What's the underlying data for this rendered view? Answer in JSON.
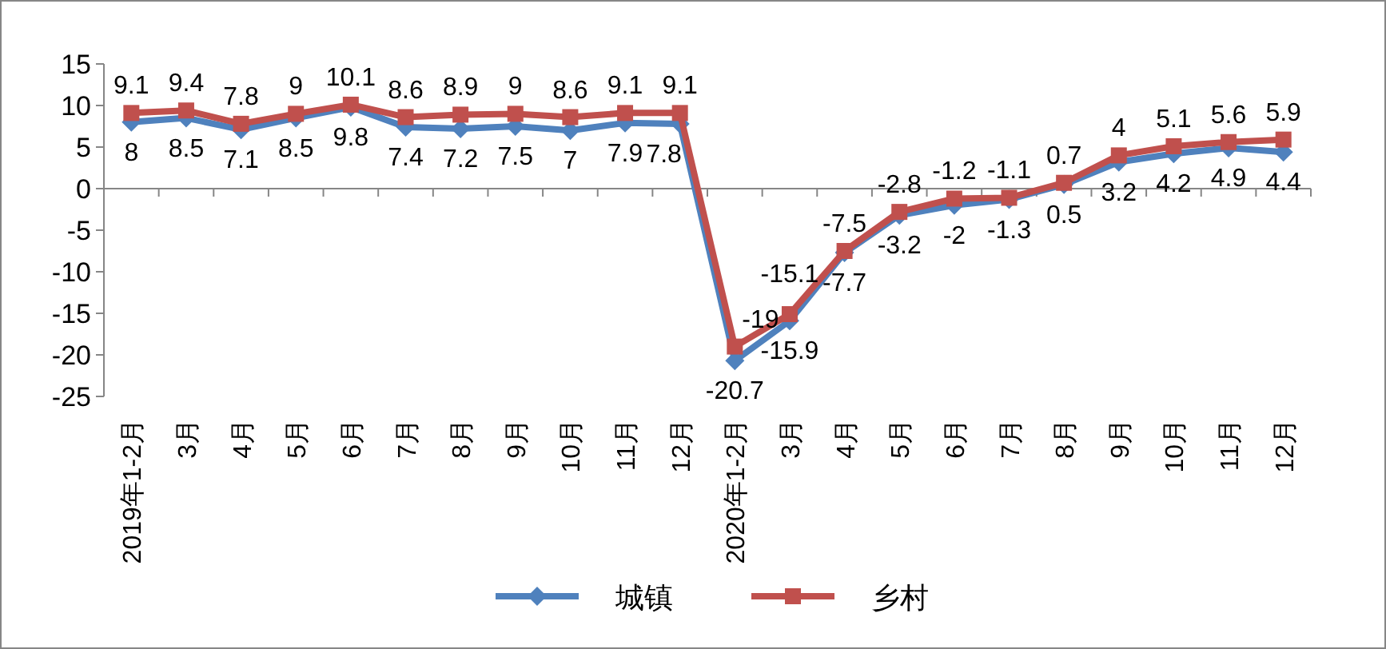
{
  "chart_data": {
    "type": "line",
    "categories": [
      "2019年1-2月",
      "3月",
      "4月",
      "5月",
      "6月",
      "7月",
      "8月",
      "9月",
      "10月",
      "11月",
      "12月",
      "2020年1-2月",
      "3月",
      "4月",
      "5月",
      "6月",
      "7月",
      "8月",
      "9月",
      "10月",
      "11月",
      "12月"
    ],
    "series": [
      {
        "name": "城镇",
        "color": "#4f81bd",
        "marker": "diamond",
        "values": [
          8,
          8.5,
          7.1,
          8.5,
          9.8,
          7.4,
          7.2,
          7.5,
          7,
          7.9,
          7.8,
          -20.7,
          -15.9,
          -7.7,
          -3.2,
          -2,
          -1.3,
          0.5,
          3.2,
          4.2,
          4.9,
          4.4
        ]
      },
      {
        "name": "乡村",
        "color": "#c0504d",
        "marker": "square",
        "values": [
          9.1,
          9.4,
          7.8,
          9,
          10.1,
          8.6,
          8.9,
          9,
          8.6,
          9.1,
          9.1,
          -19,
          -15.1,
          -7.5,
          -2.8,
          -1.2,
          -1.1,
          0.7,
          4,
          5.1,
          5.6,
          5.9
        ]
      }
    ],
    "ylim": [
      -25,
      15
    ],
    "yticks": [
      -25,
      -20,
      -15,
      -10,
      -5,
      0,
      5,
      10,
      15
    ],
    "data_labels": true,
    "legend": "bottom"
  }
}
